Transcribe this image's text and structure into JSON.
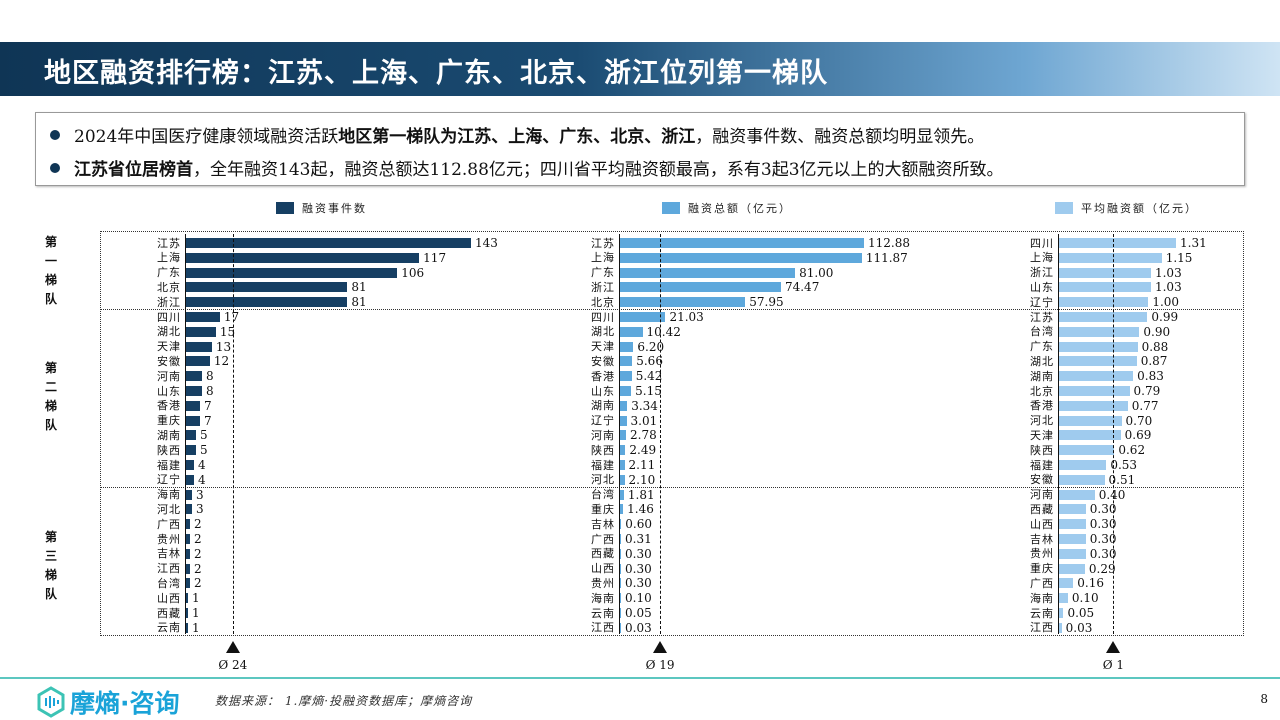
{
  "title": "地区融资排行榜：江苏、上海、广东、北京、浙江位列第一梯队",
  "summary": {
    "line1_pre": "2024年中国医疗健康领域融资活跃",
    "line1_bold": "地区第一梯队为江苏、上海、广东、北京、浙江",
    "line1_post": "，融资事件数、融资总额均明显领先。",
    "line2_bold": "江苏省位居榜首",
    "line2_post": "，全年融资143起，融资总额达112.88亿元；四川省平均融资额最高，系有3起3亿元以上的大额融资所致。"
  },
  "tiers": [
    "第一梯队",
    "第二梯队",
    "第三梯队"
  ],
  "colors": {
    "count": "#163f63",
    "total": "#5ea8dc",
    "avgamt": "#9fcbee"
  },
  "chart_data": [
    {
      "type": "bar",
      "title": "融资事件数",
      "avg": 24,
      "avg_label": "Ø 24",
      "decimals": 0,
      "max": 143,
      "categories": [
        "江苏",
        "上海",
        "广东",
        "北京",
        "浙江",
        "四川",
        "湖北",
        "天津",
        "安徽",
        "河南",
        "山东",
        "香港",
        "重庆",
        "湖南",
        "陕西",
        "福建",
        "辽宁",
        "海南",
        "河北",
        "广西",
        "贵州",
        "吉林",
        "江西",
        "台湾",
        "山西",
        "西藏",
        "云南"
      ],
      "values": [
        143,
        117,
        106,
        81,
        81,
        17,
        15,
        13,
        12,
        8,
        8,
        7,
        7,
        5,
        5,
        4,
        4,
        3,
        3,
        2,
        2,
        2,
        2,
        2,
        1,
        1,
        1
      ]
    },
    {
      "type": "bar",
      "title": "融资总额（亿元）",
      "avg": 19,
      "avg_label": "Ø 19",
      "decimals": 2,
      "max": 112.88,
      "categories": [
        "江苏",
        "上海",
        "广东",
        "浙江",
        "北京",
        "四川",
        "湖北",
        "天津",
        "安徽",
        "香港",
        "山东",
        "湖南",
        "辽宁",
        "河南",
        "陕西",
        "福建",
        "河北",
        "台湾",
        "重庆",
        "吉林",
        "广西",
        "西藏",
        "山西",
        "贵州",
        "海南",
        "云南",
        "江西"
      ],
      "values": [
        112.88,
        111.87,
        81.0,
        74.47,
        57.95,
        21.03,
        10.42,
        6.2,
        5.66,
        5.42,
        5.15,
        3.34,
        3.01,
        2.78,
        2.49,
        2.11,
        2.1,
        1.81,
        1.46,
        0.6,
        0.31,
        0.3,
        0.3,
        0.3,
        0.1,
        0.05,
        0.03
      ]
    },
    {
      "type": "bar",
      "title": "平均融资额（亿元）",
      "avg": 0.62,
      "avg_label": "Ø 1",
      "decimals": 2,
      "max": 1.31,
      "categories": [
        "四川",
        "上海",
        "浙江",
        "山东",
        "辽宁",
        "江苏",
        "台湾",
        "广东",
        "湖北",
        "湖南",
        "北京",
        "香港",
        "河北",
        "天津",
        "陕西",
        "福建",
        "安徽",
        "河南",
        "西藏",
        "山西",
        "吉林",
        "贵州",
        "重庆",
        "广西",
        "海南",
        "云南",
        "江西"
      ],
      "values": [
        1.31,
        1.15,
        1.03,
        1.03,
        1.0,
        0.99,
        0.9,
        0.88,
        0.87,
        0.83,
        0.79,
        0.77,
        0.7,
        0.69,
        0.62,
        0.53,
        0.51,
        0.4,
        0.3,
        0.3,
        0.3,
        0.3,
        0.29,
        0.16,
        0.1,
        0.05,
        0.03
      ]
    }
  ],
  "footer": {
    "logo": "摩熵·咨询",
    "source": "数据来源： 1.摩熵·投融资数据库；摩熵咨询",
    "page": "8"
  }
}
